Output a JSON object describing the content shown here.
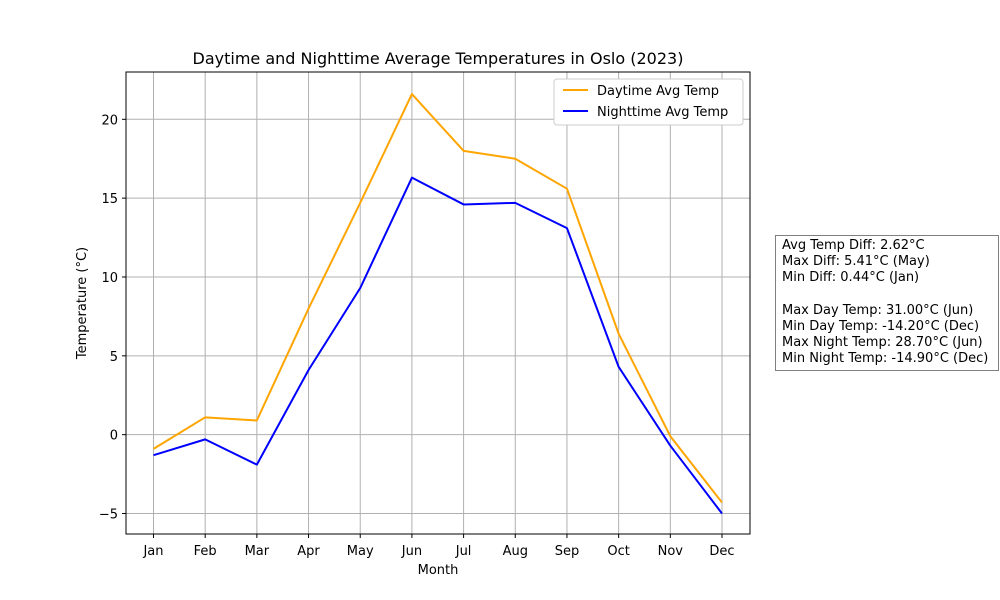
{
  "chart_data": {
    "type": "line",
    "title": "Daytime and Nighttime Average Temperatures in Oslo (2023)",
    "xlabel": "Month",
    "ylabel": "Temperature (°C)",
    "categories": [
      "Jan",
      "Feb",
      "Mar",
      "Apr",
      "May",
      "Jun",
      "Jul",
      "Aug",
      "Sep",
      "Oct",
      "Nov",
      "Dec"
    ],
    "ylim": [
      -6.3,
      23.0
    ],
    "yticks": [
      -5,
      0,
      5,
      10,
      15,
      20
    ],
    "grid": true,
    "legend_position": "top-right",
    "series": [
      {
        "name": "Daytime Avg Temp",
        "color": "#FFA500",
        "values": [
          -0.9,
          1.1,
          0.9,
          8.0,
          14.7,
          21.6,
          18.0,
          17.5,
          15.6,
          6.4,
          -0.1,
          -4.3
        ]
      },
      {
        "name": "Nighttime Avg Temp",
        "color": "#0000FF",
        "values": [
          -1.3,
          -0.3,
          -1.9,
          4.1,
          9.3,
          16.3,
          14.6,
          14.7,
          13.1,
          4.3,
          -0.7,
          -5.0
        ]
      }
    ]
  },
  "stats_box": {
    "lines_diff": [
      "Avg Temp Diff: 2.62°C",
      "Max Diff: 5.41°C (May)",
      "Min Diff: 0.44°C (Jan)"
    ],
    "lines_extremes": [
      "Max Day Temp: 31.00°C (Jun)",
      "Min Day Temp: -14.20°C (Dec)",
      "Max Night Temp: 28.70°C (Jun)",
      "Min Night Temp: -14.90°C (Dec)"
    ]
  }
}
